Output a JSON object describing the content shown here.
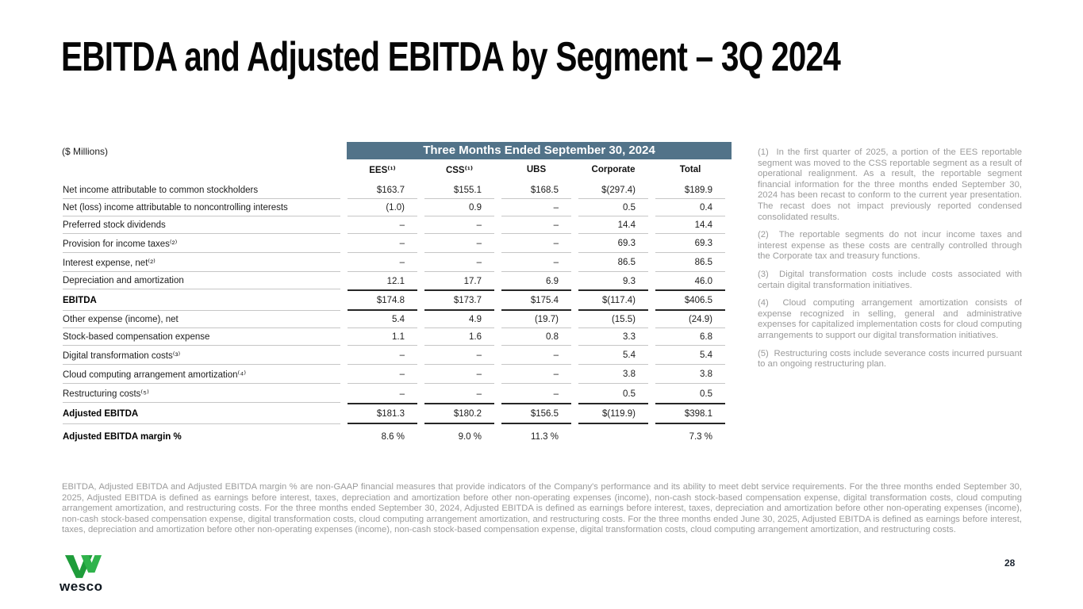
{
  "slide": {
    "title": "EBITDA and Adjusted EBITDA by Segment – 3Q 2024",
    "page_number": "28"
  },
  "colors": {
    "banner_bg": "#527389",
    "logo_green_dark": "#1E9C3A",
    "logo_green_light": "#2FB34B"
  },
  "table": {
    "units_label": "($ Millions)",
    "period_header": "Three Months Ended September 30, 2024",
    "columns": [
      "EES⁽¹⁾",
      "CSS⁽¹⁾",
      "UBS",
      "Corporate",
      "Total"
    ],
    "rows": [
      {
        "label": "Net income attributable to common stockholders",
        "values": [
          "$163.7",
          "$155.1",
          "$168.5",
          "$(297.4)",
          "$189.9"
        ],
        "style": "normal"
      },
      {
        "label": "Net (loss) income attributable to noncontrolling interests",
        "values": [
          "(1.0)",
          "0.9",
          "–",
          "0.5",
          "0.4"
        ],
        "style": "normal"
      },
      {
        "label": "Preferred stock dividends",
        "values": [
          "–",
          "–",
          "–",
          "14.4",
          "14.4"
        ],
        "style": "normal"
      },
      {
        "label": "Provision for income taxes⁽²⁾",
        "values": [
          "–",
          "–",
          "–",
          "69.3",
          "69.3"
        ],
        "style": "normal"
      },
      {
        "label": "Interest expense, net⁽²⁾",
        "values": [
          "–",
          "–",
          "–",
          "86.5",
          "86.5"
        ],
        "style": "normal"
      },
      {
        "label": "Depreciation and amortization",
        "values": [
          "12.1",
          "17.7",
          "6.9",
          "9.3",
          "46.0"
        ],
        "style": "pretotal"
      },
      {
        "label": "EBITDA",
        "values": [
          "$174.8",
          "$173.7",
          "$175.4",
          "$(117.4)",
          "$406.5"
        ],
        "style": "total"
      },
      {
        "label": "Other expense (income), net",
        "values": [
          "5.4",
          "4.9",
          "(19.7)",
          "(15.5)",
          "(24.9)"
        ],
        "style": "normal"
      },
      {
        "label": "Stock-based compensation expense",
        "values": [
          "1.1",
          "1.6",
          "0.8",
          "3.3",
          "6.8"
        ],
        "style": "normal"
      },
      {
        "label": "Digital transformation costs⁽³⁾",
        "values": [
          "–",
          "–",
          "–",
          "5.4",
          "5.4"
        ],
        "style": "normal"
      },
      {
        "label": "Cloud computing arrangement amortization⁽⁴⁾",
        "values": [
          "–",
          "–",
          "–",
          "3.8",
          "3.8"
        ],
        "style": "normal"
      },
      {
        "label": "Restructuring costs⁽⁵⁾",
        "values": [
          "–",
          "–",
          "–",
          "0.5",
          "0.5"
        ],
        "style": "pretotal"
      },
      {
        "label": "Adjusted EBITDA",
        "values": [
          "$181.3",
          "$180.2",
          "$156.5",
          "$(119.9)",
          "$398.1"
        ],
        "style": "total"
      },
      {
        "label": "Adjusted EBITDA margin %",
        "values": [
          "8.6 %",
          "9.0 %",
          "11.3 %",
          "",
          "7.3 %"
        ],
        "style": "margin"
      }
    ]
  },
  "footnotes": [
    {
      "marker": "(1)",
      "text": "In the first quarter of 2025, a portion of the EES reportable segment was moved to the CSS reportable segment as a result of operational realignment. As a result, the reportable segment financial information for the three months ended September 30, 2024 has been recast to conform to the current year presentation. The recast does not impact previously reported condensed consolidated results."
    },
    {
      "marker": "(2)",
      "text": "The reportable segments do not incur income taxes and interest expense as these costs are centrally controlled through the Corporate tax and treasury functions."
    },
    {
      "marker": "(3)",
      "text": "Digital transformation costs include costs associated with certain digital transformation initiatives."
    },
    {
      "marker": "(4)",
      "text": "Cloud computing arrangement amortization consists of expense recognized in selling, general and administrative expenses for capitalized implementation costs for cloud computing arrangements to support our digital transformation initiatives."
    },
    {
      "marker": "(5)",
      "text": "Restructuring costs include severance costs incurred pursuant to an ongoing restructuring plan."
    }
  ],
  "disclaimer": "EBITDA, Adjusted EBITDA and Adjusted EBITDA margin % are non-GAAP financial measures that provide indicators of the Company's performance and its ability to meet debt service requirements. For the three months ended September 30, 2025, Adjusted EBITDA is defined as earnings before interest, taxes, depreciation and amortization before other non-operating expenses (income), non-cash stock-based compensation expense, digital transformation costs, cloud computing arrangement amortization, and restructuring costs. For the three months ended September 30, 2024, Adjusted EBITDA is defined as earnings before interest, taxes, depreciation and amortization before other non-operating expenses (income), non-cash stock-based compensation expense, digital transformation costs, cloud computing arrangement amortization, and restructuring costs. For the three months ended June 30, 2025, Adjusted EBITDA is defined as earnings before interest, taxes, depreciation and amortization before other non-operating expenses (income), non-cash stock-based compensation expense, digital transformation costs, cloud computing arrangement amortization, and restructuring costs.",
  "logo": {
    "wordmark": "wesco"
  }
}
